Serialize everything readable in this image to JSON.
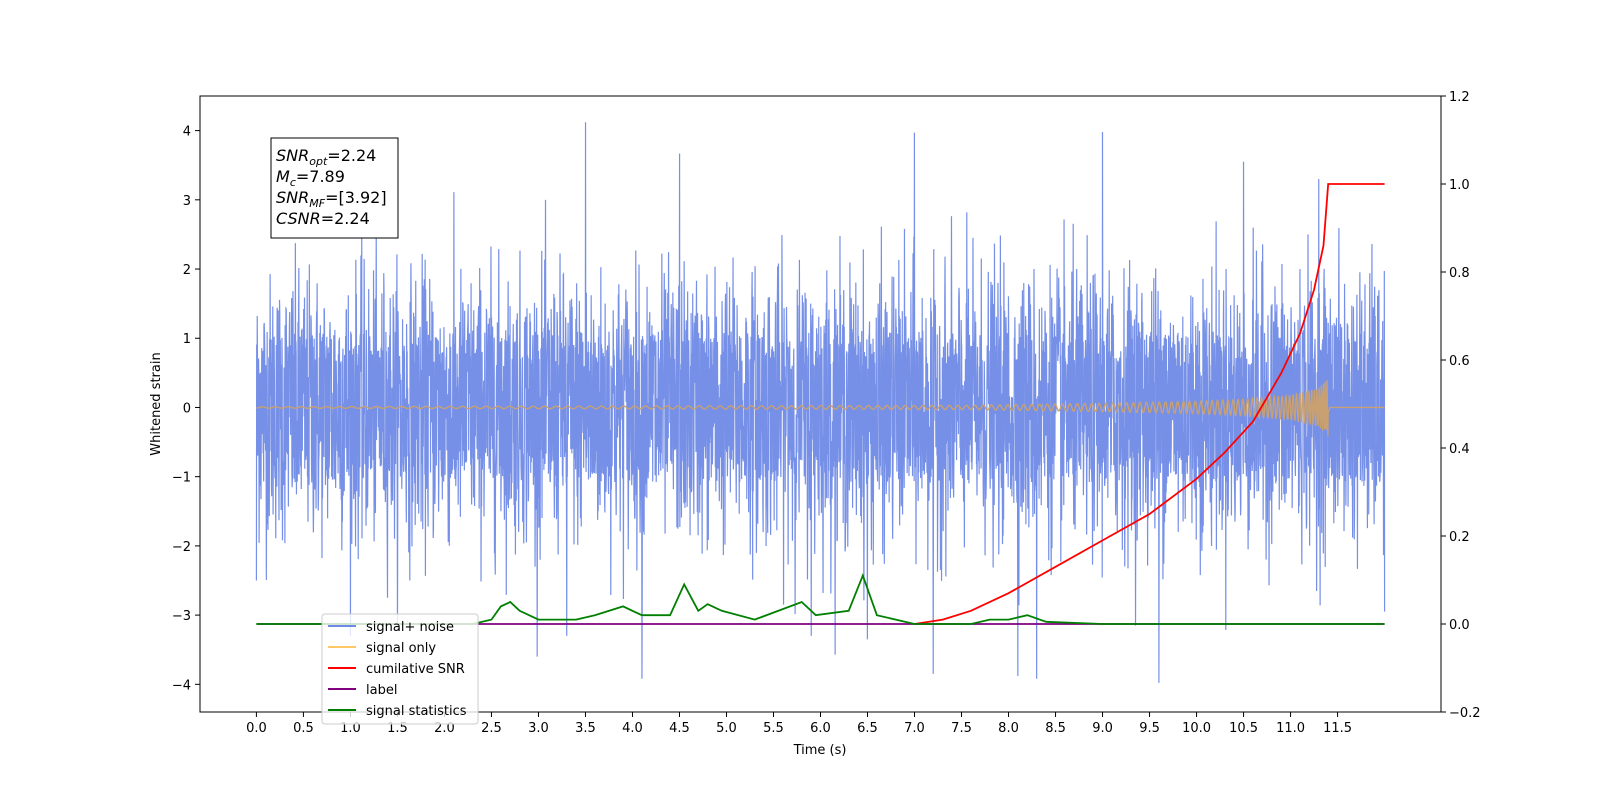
{
  "chart_data": {
    "type": "line",
    "xlabel": "Time (s)",
    "ylabel": "Whitened strain",
    "xlim": [
      -0.6,
      12.6
    ],
    "ylim": [
      -4.4,
      4.5
    ],
    "y2lim": [
      -0.2,
      1.2
    ],
    "x_ticks": [
      "0.0",
      "0.5",
      "1.0",
      "1.5",
      "2.0",
      "2.5",
      "3.0",
      "3.5",
      "4.0",
      "4.5",
      "5.0",
      "5.5",
      "6.0",
      "6.5",
      "7.0",
      "7.5",
      "8.0",
      "8.5",
      "9.0",
      "9.5",
      "10.0",
      "10.5",
      "11.0",
      "11.5"
    ],
    "y_ticks": [
      "4",
      "3",
      "2",
      "1",
      "0",
      "−1",
      "−2",
      "−3",
      "−4"
    ],
    "y2_ticks": [
      "1.2",
      "1.0",
      "0.8",
      "0.6",
      "0.4",
      "0.2",
      "0.0",
      "−0.2"
    ],
    "annotation": [
      {
        "symbol": "SNR",
        "sub": "opt",
        "value": "=2.24"
      },
      {
        "symbol": "M",
        "sub": "c",
        "value": "=7.89"
      },
      {
        "symbol": "SNR",
        "sub": "MF",
        "value": "=[3.92]"
      },
      {
        "symbol": "CSNR",
        "sub": "",
        "value": "=2.24"
      }
    ],
    "legend": {
      "placement": "lower-left",
      "entries": [
        {
          "label": "signal+ noise",
          "color": "#6f8ae6"
        },
        {
          "label": "signal only",
          "color": "#ffc766"
        },
        {
          "label": "cumilative SNR",
          "color": "#ff0000"
        },
        {
          "label": "label",
          "color": "#800080"
        },
        {
          "label": "signal statistics",
          "color": "#008000"
        }
      ]
    },
    "series": [
      {
        "name": "signal+ noise",
        "axis": "left",
        "color": "#6f8ae6",
        "x_range": [
          0.0,
          12.0
        ],
        "noise_std": 0.95,
        "peaks": [
          [
            0.0,
            2.85
          ],
          [
            3.5,
            4.12
          ],
          [
            4.5,
            3.67
          ],
          [
            6.5,
            3.62
          ],
          [
            7.0,
            3.97
          ],
          [
            9.0,
            3.98
          ],
          [
            10.5,
            3.55
          ],
          [
            11.3,
            3.3
          ],
          [
            12.0,
            2.7
          ],
          [
            0.0,
            -2.5
          ],
          [
            4.1,
            -3.92
          ],
          [
            6.5,
            -3.35
          ],
          [
            7.2,
            -3.85
          ],
          [
            8.1,
            -3.88
          ],
          [
            8.3,
            -3.92
          ],
          [
            9.6,
            -3.98
          ],
          [
            12.0,
            -2.95
          ],
          [
            3.3,
            -3.3
          ],
          [
            5.9,
            -3.3
          ]
        ]
      },
      {
        "name": "signal only",
        "axis": "left",
        "color": "#ffc766",
        "merger_time": 11.4,
        "envelope": [
          [
            0.0,
            0.01
          ],
          [
            7.5,
            0.03
          ],
          [
            9.0,
            0.06
          ],
          [
            10.0,
            0.09
          ],
          [
            10.5,
            0.12
          ],
          [
            11.0,
            0.18
          ],
          [
            11.3,
            0.28
          ],
          [
            11.4,
            0.42
          ]
        ]
      },
      {
        "name": "cumilative SNR",
        "axis": "right",
        "color": "#ff0000",
        "points": [
          [
            7.0,
            0.0
          ],
          [
            7.3,
            0.01
          ],
          [
            7.6,
            0.03
          ],
          [
            8.0,
            0.07
          ],
          [
            8.5,
            0.13
          ],
          [
            9.0,
            0.19
          ],
          [
            9.5,
            0.25
          ],
          [
            10.0,
            0.33
          ],
          [
            10.3,
            0.39
          ],
          [
            10.6,
            0.46
          ],
          [
            10.9,
            0.57
          ],
          [
            11.1,
            0.66
          ],
          [
            11.25,
            0.76
          ],
          [
            11.35,
            0.86
          ],
          [
            11.4,
            1.0
          ],
          [
            12.0,
            1.0
          ]
        ]
      },
      {
        "name": "label",
        "axis": "right",
        "color": "#800080",
        "points": [
          [
            0.0,
            0.0
          ],
          [
            12.0,
            0.0
          ]
        ]
      },
      {
        "name": "signal statistics",
        "axis": "right",
        "color": "#008000",
        "points": [
          [
            0.0,
            0.0
          ],
          [
            2.3,
            0.0
          ],
          [
            2.5,
            0.01
          ],
          [
            2.6,
            0.04
          ],
          [
            2.7,
            0.05
          ],
          [
            2.8,
            0.03
          ],
          [
            3.0,
            0.01
          ],
          [
            3.4,
            0.01
          ],
          [
            3.6,
            0.02
          ],
          [
            3.9,
            0.04
          ],
          [
            4.1,
            0.02
          ],
          [
            4.4,
            0.02
          ],
          [
            4.55,
            0.09
          ],
          [
            4.7,
            0.03
          ],
          [
            4.8,
            0.045
          ],
          [
            4.95,
            0.03
          ],
          [
            5.3,
            0.01
          ],
          [
            5.8,
            0.05
          ],
          [
            5.95,
            0.02
          ],
          [
            6.3,
            0.03
          ],
          [
            6.45,
            0.11
          ],
          [
            6.6,
            0.02
          ],
          [
            7.0,
            0.0
          ],
          [
            7.6,
            0.0
          ],
          [
            7.8,
            0.01
          ],
          [
            8.0,
            0.01
          ],
          [
            8.2,
            0.02
          ],
          [
            8.4,
            0.005
          ],
          [
            9.0,
            0.0
          ],
          [
            12.0,
            0.0
          ]
        ]
      }
    ]
  }
}
